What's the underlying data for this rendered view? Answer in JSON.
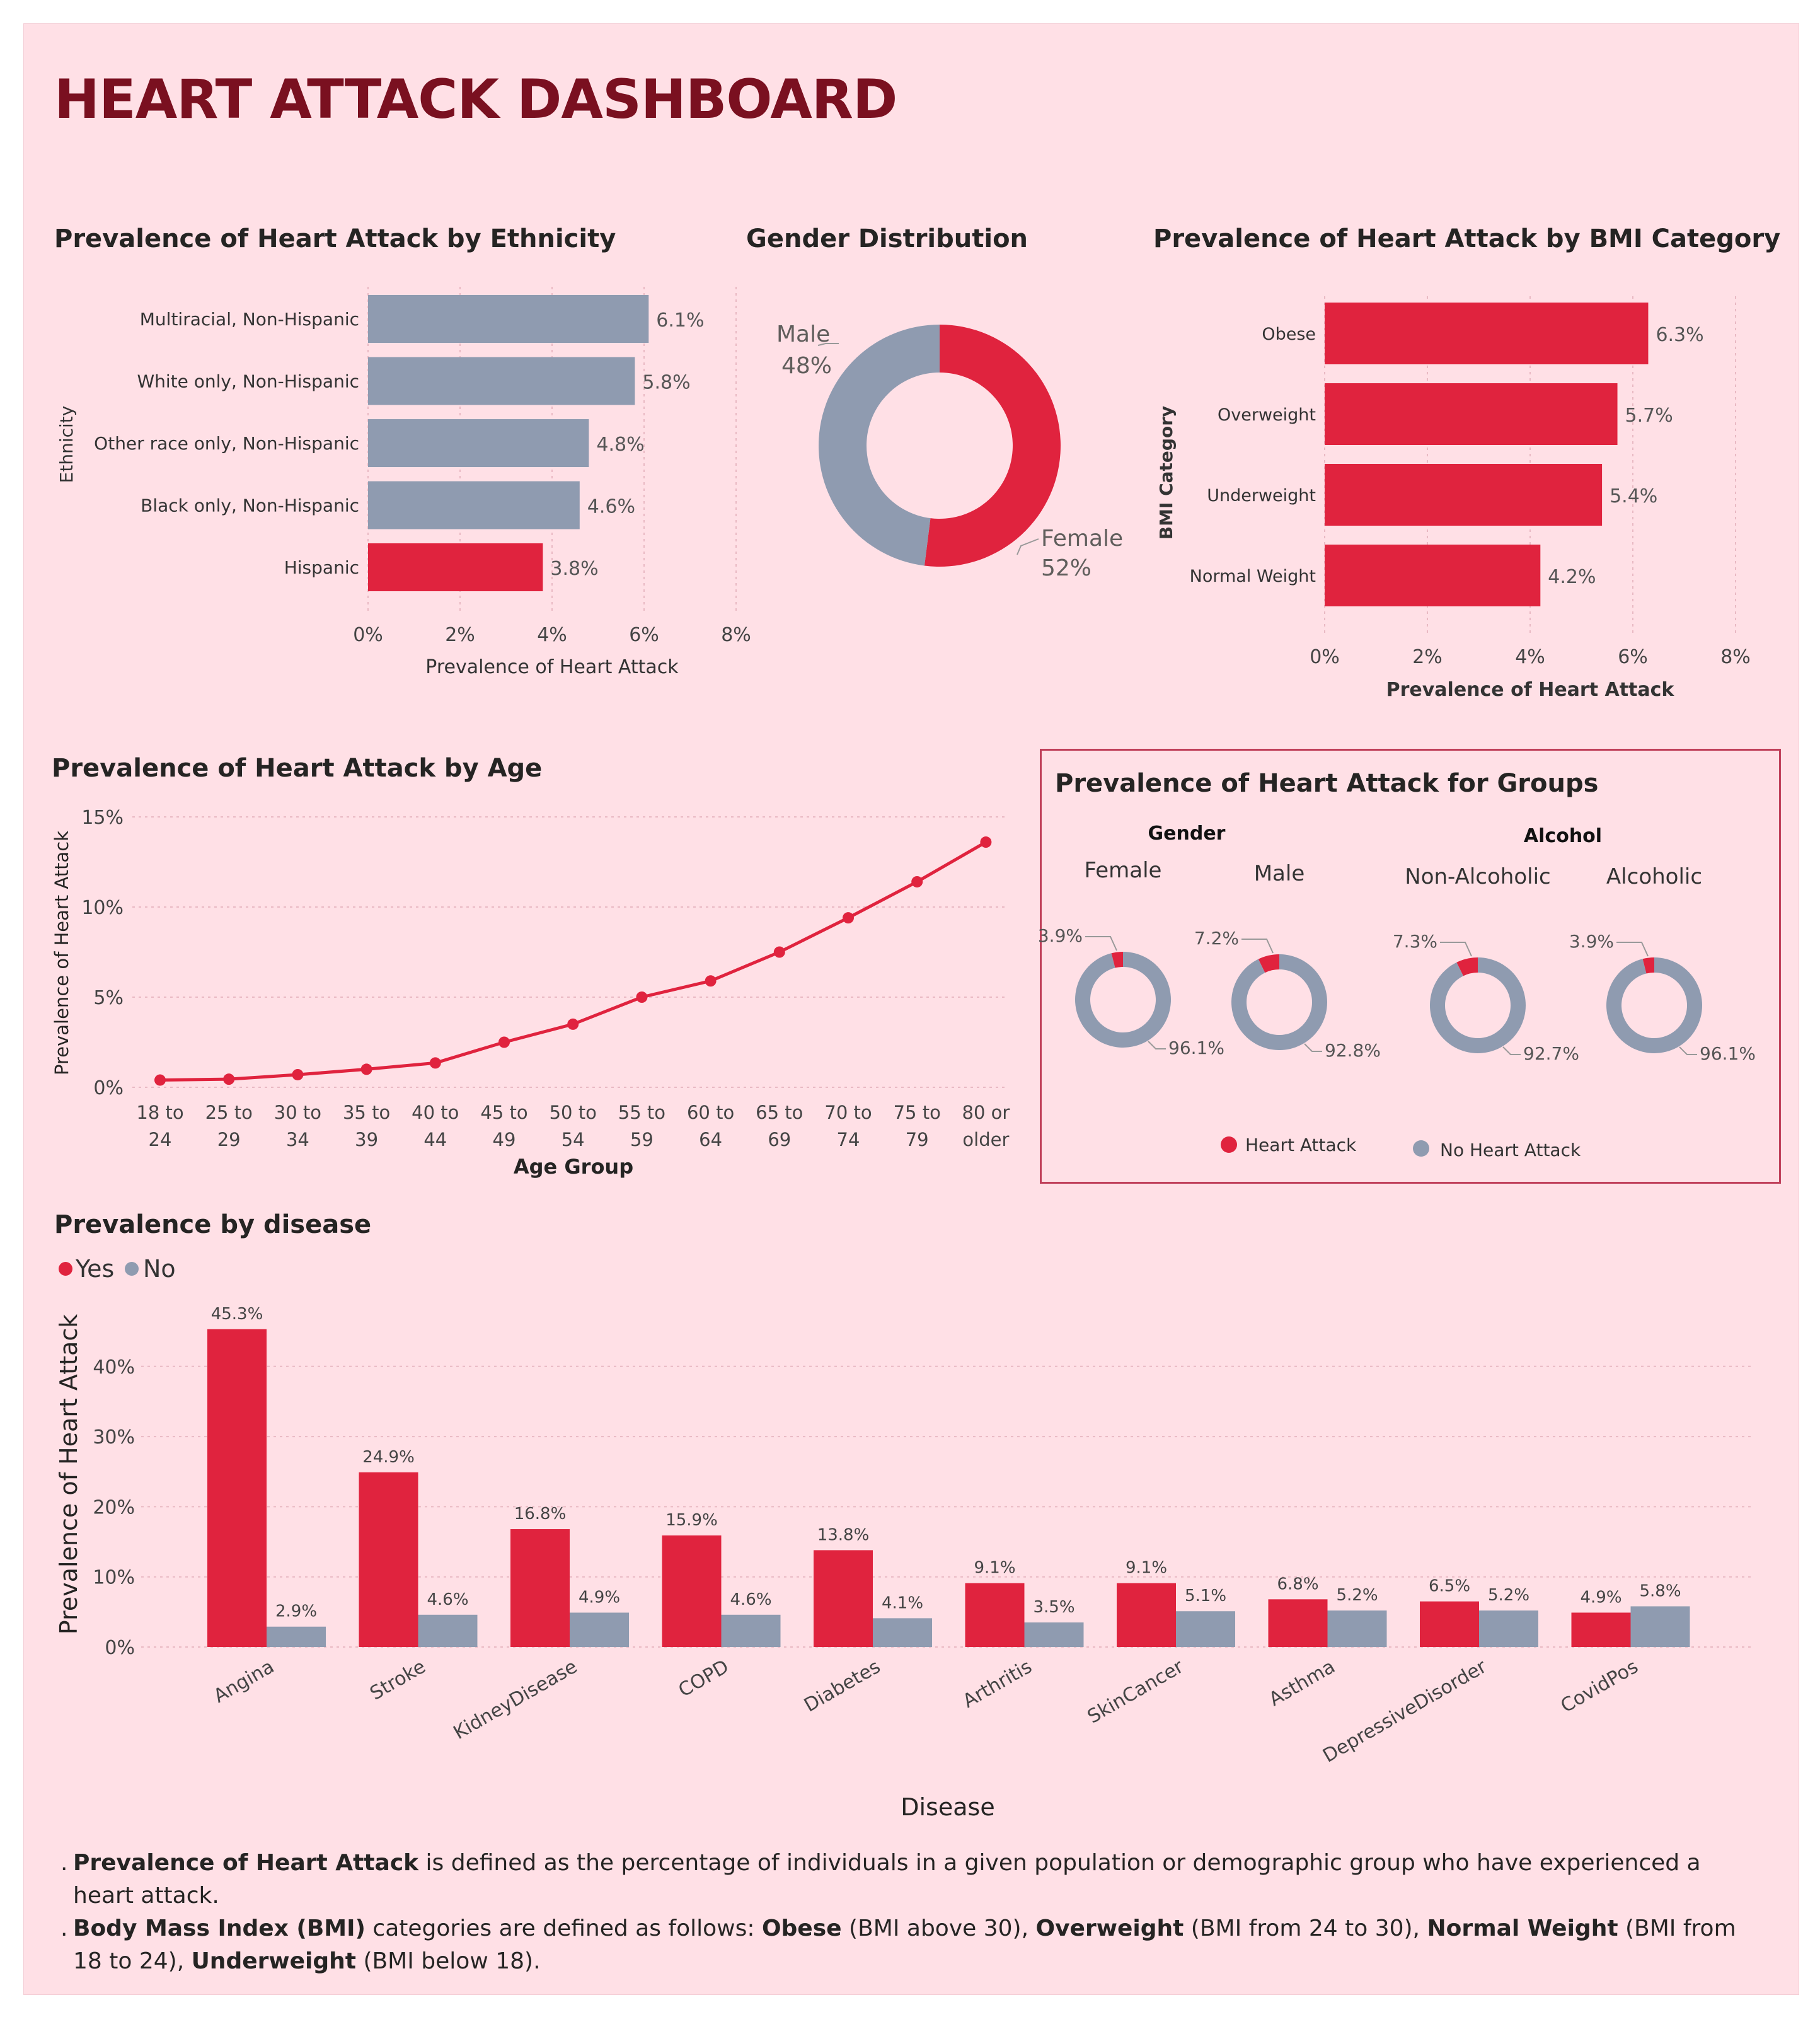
{
  "title": "HEART ATTACK DASHBOARD",
  "colors": {
    "yes": "#e0233e",
    "no": "#8f9bb0",
    "bg": "#ffe0e6"
  },
  "panels": {
    "ethnicity": "Prevalence of Heart Attack by Ethnicity",
    "gender": "Gender Distribution",
    "bmi": "Prevalence of Heart Attack by BMI Category",
    "age": "Prevalence of Heart Attack by Age",
    "groups": "Prevalence of Heart Attack for Groups",
    "disease": "Prevalence by disease"
  },
  "chart_data": [
    {
      "type": "bar",
      "orientation": "horizontal",
      "title": "Prevalence of Heart Attack by Ethnicity",
      "xlabel": "Prevalence of Heart Attack",
      "ylabel": "Ethnicity",
      "categories": [
        "Multiracial, Non-Hispanic",
        "White only, Non-Hispanic",
        "Other race only, Non-Hispanic",
        "Black only, Non-Hispanic",
        "Hispanic"
      ],
      "values": [
        6.1,
        5.8,
        4.8,
        4.6,
        3.8
      ],
      "value_labels": [
        "6.1%",
        "5.8%",
        "4.8%",
        "4.6%",
        "3.8%"
      ],
      "highlight": [
        false,
        false,
        false,
        false,
        true
      ],
      "xlim": [
        0,
        8
      ],
      "xticks": [
        "0%",
        "2%",
        "4%",
        "6%",
        "8%"
      ]
    },
    {
      "type": "pie",
      "style": "donut",
      "title": "Gender Distribution",
      "slices": [
        {
          "name": "Female",
          "value": 52,
          "label": "52%"
        },
        {
          "name": "Male",
          "value": 48,
          "label": "48%"
        }
      ]
    },
    {
      "type": "bar",
      "orientation": "horizontal",
      "title": "Prevalence of Heart Attack by BMI Category",
      "xlabel": "Prevalence of Heart Attack",
      "ylabel": "BMI Category",
      "categories": [
        "Obese",
        "Overweight",
        "Underweight",
        "Normal Weight"
      ],
      "values": [
        6.3,
        5.7,
        5.4,
        4.2
      ],
      "value_labels": [
        "6.3%",
        "5.7%",
        "5.4%",
        "4.2%"
      ],
      "xlim": [
        0,
        8
      ],
      "xticks": [
        "0%",
        "2%",
        "4%",
        "6%",
        "8%"
      ]
    },
    {
      "type": "line",
      "title": "Prevalence of Heart Attack by Age",
      "xlabel": "Age Group",
      "ylabel": "Prevalence of Heart Attack",
      "categories": [
        [
          "18 to",
          "24"
        ],
        [
          "25 to",
          "29"
        ],
        [
          "30 to",
          "34"
        ],
        [
          "35 to",
          "39"
        ],
        [
          "40 to",
          "44"
        ],
        [
          "45 to",
          "49"
        ],
        [
          "50 to",
          "54"
        ],
        [
          "55 to",
          "59"
        ],
        [
          "60 to",
          "64"
        ],
        [
          "65 to",
          "69"
        ],
        [
          "70 to",
          "74"
        ],
        [
          "75 to",
          "79"
        ],
        [
          "80 or",
          "older"
        ]
      ],
      "values": [
        0.4,
        0.45,
        0.7,
        1.0,
        1.35,
        2.5,
        3.5,
        5.0,
        5.9,
        7.5,
        9.4,
        11.4,
        13.6
      ],
      "ylim": [
        0,
        15
      ],
      "yticks": [
        "0%",
        "5%",
        "10%",
        "15%"
      ]
    },
    {
      "type": "pie",
      "style": "donut-group",
      "title": "Prevalence of Heart Attack for Groups",
      "group_headers": [
        "Gender",
        "Alcohol"
      ],
      "legend": [
        "Heart Attack",
        "No Heart Attack"
      ],
      "donuts": [
        {
          "name": "Female",
          "yes": 3.9,
          "yes_label": "3.9%",
          "no_label": "96.1%"
        },
        {
          "name": "Male",
          "yes": 7.2,
          "yes_label": "7.2%",
          "no_label": "92.8%"
        },
        {
          "name": "Non-Alcoholic",
          "yes": 7.3,
          "yes_label": "7.3%",
          "no_label": "92.7%"
        },
        {
          "name": "Alcoholic",
          "yes": 3.9,
          "yes_label": "3.9%",
          "no_label": "96.1%"
        }
      ]
    },
    {
      "type": "bar",
      "title": "Prevalence by disease",
      "xlabel": "Disease",
      "ylabel": "Prevalence of Heart Attack",
      "legend": [
        "Yes",
        "No"
      ],
      "categories": [
        "Angina",
        "Stroke",
        "KidneyDisease",
        "COPD",
        "Diabetes",
        "Arthritis",
        "SkinCancer",
        "Asthma",
        "DepressiveDisorder",
        "CovidPos"
      ],
      "series": [
        {
          "name": "Yes",
          "values": [
            45.3,
            24.9,
            16.8,
            15.9,
            13.8,
            9.1,
            9.1,
            6.8,
            6.5,
            4.9
          ],
          "labels": [
            "45.3%",
            "24.9%",
            "16.8%",
            "15.9%",
            "13.8%",
            "9.1%",
            "9.1%",
            "6.8%",
            "6.5%",
            "4.9%"
          ]
        },
        {
          "name": "No",
          "values": [
            2.9,
            4.6,
            4.9,
            4.6,
            4.1,
            3.5,
            5.1,
            5.2,
            5.2,
            5.8
          ],
          "labels": [
            "2.9%",
            "4.6%",
            "4.9%",
            "4.6%",
            "4.1%",
            "3.5%",
            "5.1%",
            "5.2%",
            "5.2%",
            "5.8%"
          ]
        }
      ],
      "ylim": [
        0,
        45
      ],
      "yticks": [
        "0%",
        "10%",
        "20%",
        "30%",
        "40%"
      ]
    }
  ],
  "notes": {
    "n1_bold": "Prevalence of Heart Attack",
    "n1_rest": " is defined as the percentage of individuals in a given population or demographic group who have experienced a heart attack.",
    "n2_bold": "Body Mass Index (BMI)",
    "n2_a": " categories are defined as follows: ",
    "n2_obese": "Obese",
    "n2_b": " (BMI above 30), ",
    "n2_over": "Overweight",
    "n2_c": " (BMI from 24 to 30), ",
    "n2_normal": "Normal Weight",
    "n2_d": " (BMI from 18 to 24), ",
    "n2_under": "Underweight",
    "n2_e": " (BMI below 18)."
  }
}
